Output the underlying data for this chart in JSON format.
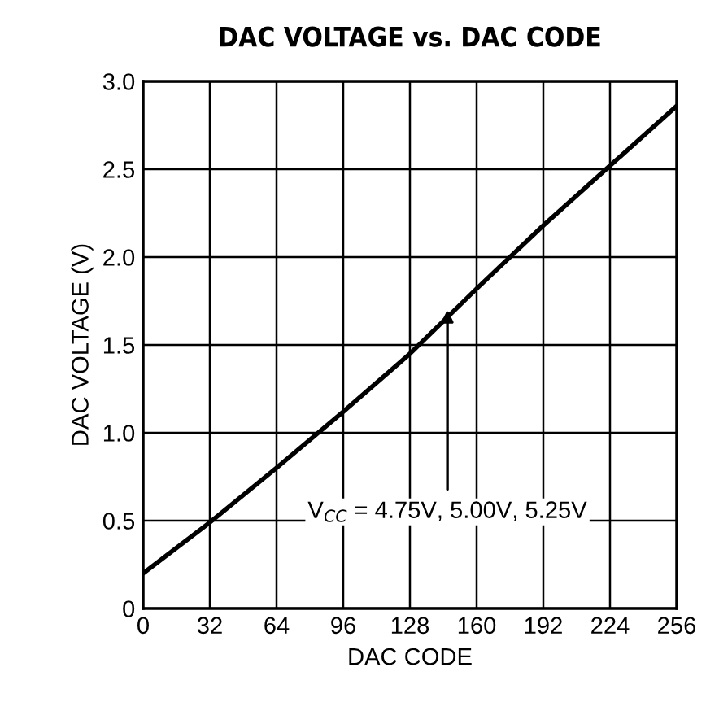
{
  "chart_data": {
    "type": "line",
    "title": "DAC VOLTAGE vs. DAC CODE",
    "xlabel": "DAC CODE",
    "ylabel": "DAC VOLTAGE (V)",
    "x": [
      0,
      32,
      64,
      96,
      128,
      160,
      192,
      224,
      256
    ],
    "series": [
      {
        "color": "#000000",
        "values": [
          0.2,
          0.49,
          0.8,
          1.12,
          1.45,
          1.82,
          2.18,
          2.52,
          2.86
        ]
      }
    ],
    "xlim": [
      0,
      256
    ],
    "xticks": [
      0,
      32,
      64,
      96,
      128,
      160,
      192,
      224,
      256
    ],
    "ylim": [
      0,
      3
    ],
    "yticks": [
      0,
      {
        "value": 0.5,
        "label": "0.5"
      },
      {
        "value": 1,
        "label": "1.0"
      },
      {
        "value": 1.5,
        "label": "1.5"
      },
      {
        "value": 2,
        "label": "2.0"
      },
      {
        "value": 2.5,
        "label": "2.5"
      },
      {
        "value": 3,
        "label": "3.0"
      }
    ],
    "grid": true,
    "legend": false,
    "marker": "none",
    "line_style": "solid",
    "annotations": [
      {
        "text": "V$_{CC}$ = 4.75V, 5.00V, 5.25V",
        "x": 146,
        "y": 1.7
      }
    ]
  }
}
